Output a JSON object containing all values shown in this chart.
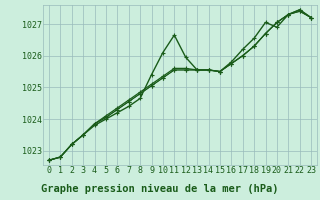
{
  "bg_color": "#cceedd",
  "grid_color": "#99bbbb",
  "line_color": "#1a5c1a",
  "marker_color": "#1a5c1a",
  "title": "Graphe pression niveau de la mer (hPa)",
  "xlim": [
    -0.5,
    23.5
  ],
  "ylim": [
    1022.55,
    1027.6
  ],
  "yticks": [
    1023,
    1024,
    1025,
    1026,
    1027
  ],
  "xticks": [
    0,
    1,
    2,
    3,
    4,
    5,
    6,
    7,
    8,
    9,
    10,
    11,
    12,
    13,
    14,
    15,
    16,
    17,
    18,
    19,
    20,
    21,
    22,
    23
  ],
  "series": [
    [
      1022.7,
      1022.8,
      1023.2,
      1023.5,
      1023.8,
      1024.0,
      1024.2,
      1024.4,
      1024.65,
      1025.4,
      1026.1,
      1026.65,
      1025.95,
      1025.55,
      1025.55,
      1025.5,
      1025.8,
      1026.2,
      1026.55,
      1027.05,
      1026.9,
      1027.3,
      1027.45,
      1027.2
    ],
    [
      1022.7,
      1022.8,
      1023.2,
      1023.5,
      1023.85,
      1024.05,
      1024.3,
      1024.55,
      1024.8,
      1025.05,
      1025.3,
      1025.55,
      1025.55,
      1025.55,
      1025.55,
      1025.5,
      1025.75,
      1026.0,
      1026.3,
      1026.7,
      1027.05,
      1027.3,
      1027.4,
      1027.2
    ],
    [
      1022.7,
      1022.8,
      1023.2,
      1023.5,
      1023.85,
      1024.05,
      1024.3,
      1024.55,
      1024.8,
      1025.05,
      1025.3,
      1025.55,
      1025.55,
      1025.55,
      1025.55,
      1025.5,
      1025.75,
      1026.0,
      1026.3,
      1026.7,
      1027.05,
      1027.3,
      1027.4,
      1027.2
    ],
    [
      1022.7,
      1022.8,
      1023.2,
      1023.5,
      1023.85,
      1024.1,
      1024.35,
      1024.6,
      1024.85,
      1025.1,
      1025.35,
      1025.6,
      1025.6,
      1025.55,
      1025.55,
      1025.5,
      1025.75,
      1026.0,
      1026.3,
      1026.7,
      1027.05,
      1027.3,
      1027.45,
      1027.2
    ]
  ],
  "linewidths": [
    1.0,
    0.7,
    0.7,
    0.9
  ],
  "marker_sizes": [
    3,
    3,
    3,
    3
  ],
  "title_fontsize": 7.5,
  "tick_fontsize": 6.0
}
